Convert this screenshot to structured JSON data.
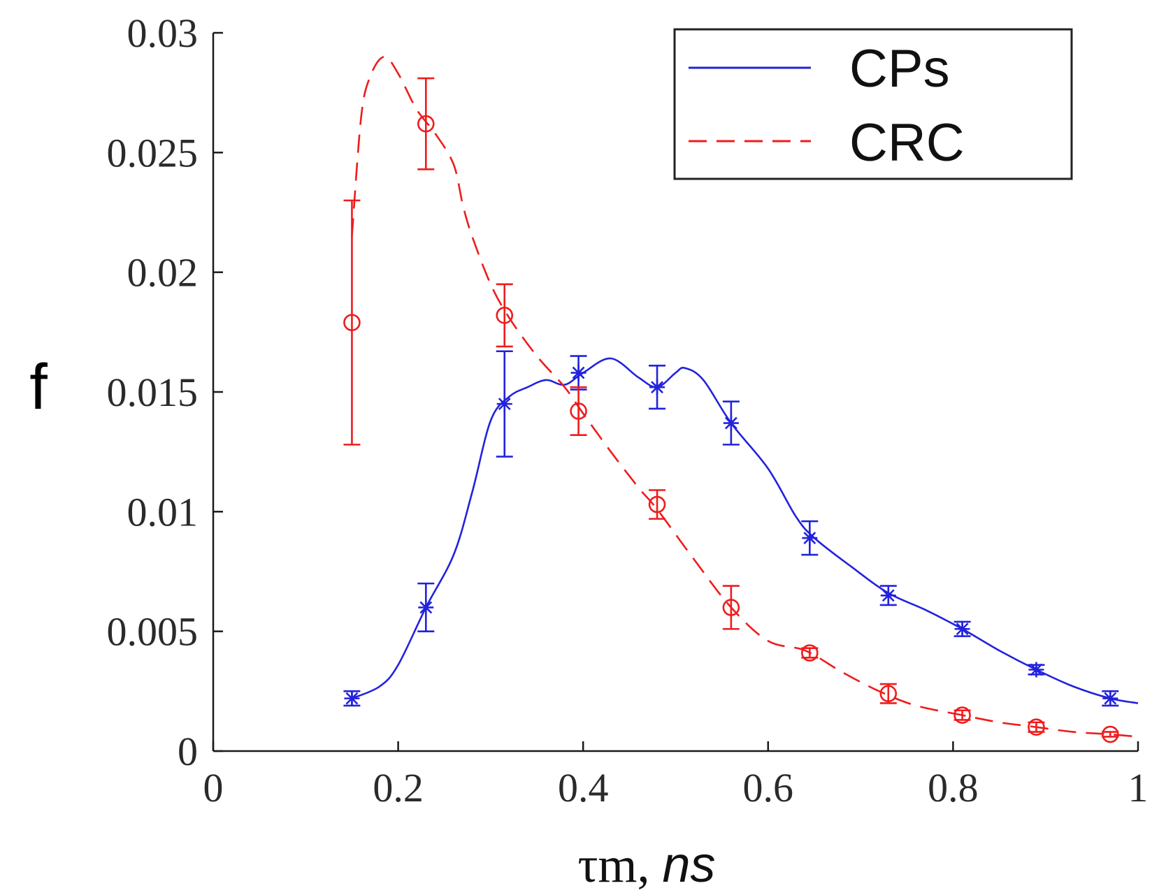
{
  "chart_data": {
    "type": "line",
    "title": "",
    "xlabel": "τm, ns",
    "xlabel_symbol": "τm,",
    "xlabel_unit": "ns",
    "ylabel": "f",
    "xlim": [
      0,
      1
    ],
    "ylim": [
      0,
      0.03
    ],
    "xticks": [
      0,
      0.2,
      0.4,
      0.6,
      0.8,
      1
    ],
    "xtick_labels": [
      "0",
      "0.2",
      "0.4",
      "0.6",
      "0.8",
      "1"
    ],
    "yticks": [
      0,
      0.005,
      0.01,
      0.015,
      0.02,
      0.025,
      0.03
    ],
    "ytick_labels": [
      "0",
      "0.005",
      "0.01",
      "0.015",
      "0.02",
      "0.025",
      "0.03"
    ],
    "grid": false,
    "legend_position": "top-right",
    "series": [
      {
        "name": "CPs",
        "color": "#2222dd",
        "line_style": "solid",
        "marker": "asterisk",
        "curve": [
          [
            0.15,
            0.0022
          ],
          [
            0.18,
            0.0027
          ],
          [
            0.2,
            0.0036
          ],
          [
            0.23,
            0.006
          ],
          [
            0.26,
            0.0082
          ],
          [
            0.28,
            0.0108
          ],
          [
            0.3,
            0.0138
          ],
          [
            0.32,
            0.0148
          ],
          [
            0.34,
            0.0152
          ],
          [
            0.36,
            0.0155
          ],
          [
            0.38,
            0.0153
          ],
          [
            0.4,
            0.0158
          ],
          [
            0.43,
            0.0164
          ],
          [
            0.46,
            0.0156
          ],
          [
            0.48,
            0.0152
          ],
          [
            0.5,
            0.0158
          ],
          [
            0.51,
            0.016
          ],
          [
            0.53,
            0.0155
          ],
          [
            0.56,
            0.0137
          ],
          [
            0.6,
            0.0118
          ],
          [
            0.63,
            0.0098
          ],
          [
            0.65,
            0.0089
          ],
          [
            0.69,
            0.0077
          ],
          [
            0.73,
            0.0066
          ],
          [
            0.77,
            0.0059
          ],
          [
            0.81,
            0.0051
          ],
          [
            0.85,
            0.0042
          ],
          [
            0.89,
            0.0034
          ],
          [
            0.93,
            0.0027
          ],
          [
            0.97,
            0.0022
          ],
          [
            1.0,
            0.002
          ]
        ],
        "points": [
          {
            "x": 0.15,
            "y": 0.0022,
            "err": 0.0003
          },
          {
            "x": 0.23,
            "y": 0.006,
            "err": 0.001
          },
          {
            "x": 0.315,
            "y": 0.0145,
            "err": 0.0022
          },
          {
            "x": 0.395,
            "y": 0.0158,
            "err": 0.0007
          },
          {
            "x": 0.48,
            "y": 0.0152,
            "err": 0.0009
          },
          {
            "x": 0.56,
            "y": 0.0137,
            "err": 0.0009
          },
          {
            "x": 0.645,
            "y": 0.0089,
            "err": 0.0007
          },
          {
            "x": 0.73,
            "y": 0.0065,
            "err": 0.0004
          },
          {
            "x": 0.81,
            "y": 0.0051,
            "err": 0.0003
          },
          {
            "x": 0.89,
            "y": 0.0034,
            "err": 0.0002
          },
          {
            "x": 0.97,
            "y": 0.0022,
            "err": 0.0003
          }
        ]
      },
      {
        "name": "CRC",
        "color": "#ee1c1c",
        "line_style": "dashed",
        "marker": "circle",
        "curve": [
          [
            0.15,
            0.0215
          ],
          [
            0.16,
            0.0265
          ],
          [
            0.17,
            0.0282
          ],
          [
            0.185,
            0.029
          ],
          [
            0.2,
            0.0283
          ],
          [
            0.22,
            0.0268
          ],
          [
            0.24,
            0.0258
          ],
          [
            0.26,
            0.0245
          ],
          [
            0.27,
            0.0228
          ],
          [
            0.28,
            0.0215
          ],
          [
            0.3,
            0.0195
          ],
          [
            0.32,
            0.0181
          ],
          [
            0.35,
            0.0165
          ],
          [
            0.38,
            0.0152
          ],
          [
            0.4,
            0.0141
          ],
          [
            0.43,
            0.0125
          ],
          [
            0.46,
            0.011
          ],
          [
            0.48,
            0.0101
          ],
          [
            0.52,
            0.008
          ],
          [
            0.56,
            0.006
          ],
          [
            0.6,
            0.0046
          ],
          [
            0.64,
            0.0042
          ],
          [
            0.68,
            0.0033
          ],
          [
            0.72,
            0.0025
          ],
          [
            0.76,
            0.0019
          ],
          [
            0.81,
            0.0015
          ],
          [
            0.85,
            0.0012
          ],
          [
            0.89,
            0.001
          ],
          [
            0.93,
            0.0008
          ],
          [
            0.97,
            0.0007
          ],
          [
            1.0,
            0.0006
          ]
        ],
        "points": [
          {
            "x": 0.15,
            "y": 0.0179,
            "err": 0.0051
          },
          {
            "x": 0.23,
            "y": 0.0262,
            "err": 0.0019
          },
          {
            "x": 0.315,
            "y": 0.0182,
            "err": 0.0013
          },
          {
            "x": 0.395,
            "y": 0.0142,
            "err": 0.001
          },
          {
            "x": 0.48,
            "y": 0.0103,
            "err": 0.0006
          },
          {
            "x": 0.56,
            "y": 0.006,
            "err": 0.0009
          },
          {
            "x": 0.645,
            "y": 0.0041,
            "err": 0.0002
          },
          {
            "x": 0.73,
            "y": 0.0024,
            "err": 0.0004
          },
          {
            "x": 0.81,
            "y": 0.0015,
            "err": 0.0002
          },
          {
            "x": 0.89,
            "y": 0.001,
            "err": 0.0002
          },
          {
            "x": 0.97,
            "y": 0.0007,
            "err": 0.0001
          }
        ]
      }
    ]
  }
}
